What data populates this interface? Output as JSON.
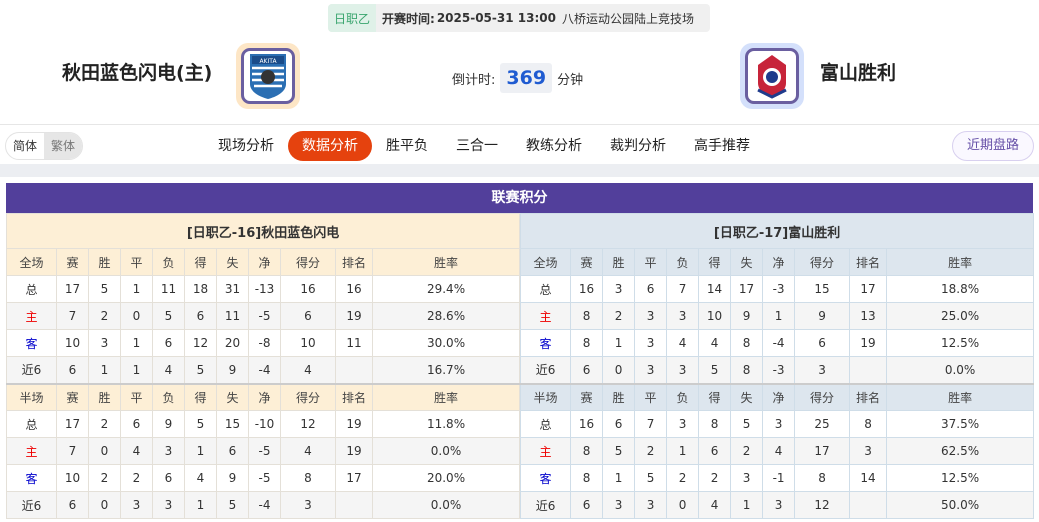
{
  "match": {
    "league": "日职乙",
    "time_label": "开赛时间:",
    "time": "2025-05-31 13:00",
    "venue": "八桥运动公园陆上竞技场",
    "home": "秋田蓝色闪电(主)",
    "away": "富山胜利",
    "countdown_label": "倒计时:",
    "countdown": "369",
    "countdown_unit": "分钟",
    "home_logo_text": "AKITA"
  },
  "nav": {
    "lang": [
      "简体",
      "繁体"
    ],
    "tabs": [
      "现场分析",
      "数据分析",
      "胜平负",
      "三合一",
      "教练分析",
      "裁判分析",
      "高手推荐"
    ],
    "active": "数据分析",
    "recent": "近期盘路"
  },
  "colors": {
    "accent": "#e5420e",
    "section": "#523f9b",
    "home_row_label": "#e00000",
    "away_row_label": "#0000cc"
  },
  "standings": {
    "title": "联赛积分",
    "headers": [
      "赛",
      "胜",
      "平",
      "负",
      "得",
      "失",
      "净",
      "得分",
      "排名",
      "胜率"
    ],
    "tables": [
      {
        "team": "[日职乙-16]秋田蓝色闪电",
        "sections": [
          {
            "label": "全场",
            "rows": [
              [
                "总",
                "17",
                "5",
                "1",
                "11",
                "18",
                "31",
                "-13",
                "16",
                "16",
                "29.4%"
              ],
              [
                "主",
                "7",
                "2",
                "0",
                "5",
                "6",
                "11",
                "-5",
                "6",
                "19",
                "28.6%"
              ],
              [
                "客",
                "10",
                "3",
                "1",
                "6",
                "12",
                "20",
                "-8",
                "10",
                "11",
                "30.0%"
              ],
              [
                "近6",
                "6",
                "1",
                "1",
                "4",
                "5",
                "9",
                "-4",
                "4",
                "",
                "16.7%"
              ]
            ]
          },
          {
            "label": "半场",
            "rows": [
              [
                "总",
                "17",
                "2",
                "6",
                "9",
                "5",
                "15",
                "-10",
                "12",
                "19",
                "11.8%"
              ],
              [
                "主",
                "7",
                "0",
                "4",
                "3",
                "1",
                "6",
                "-5",
                "4",
                "19",
                "0.0%"
              ],
              [
                "客",
                "10",
                "2",
                "2",
                "6",
                "4",
                "9",
                "-5",
                "8",
                "17",
                "20.0%"
              ],
              [
                "近6",
                "6",
                "0",
                "3",
                "3",
                "1",
                "5",
                "-4",
                "3",
                "",
                "0.0%"
              ]
            ]
          }
        ]
      },
      {
        "team": "[日职乙-17]富山胜利",
        "sections": [
          {
            "label": "全场",
            "rows": [
              [
                "总",
                "16",
                "3",
                "6",
                "7",
                "14",
                "17",
                "-3",
                "15",
                "17",
                "18.8%"
              ],
              [
                "主",
                "8",
                "2",
                "3",
                "3",
                "10",
                "9",
                "1",
                "9",
                "13",
                "25.0%"
              ],
              [
                "客",
                "8",
                "1",
                "3",
                "4",
                "4",
                "8",
                "-4",
                "6",
                "19",
                "12.5%"
              ],
              [
                "近6",
                "6",
                "0",
                "3",
                "3",
                "5",
                "8",
                "-3",
                "3",
                "",
                "0.0%"
              ]
            ]
          },
          {
            "label": "半场",
            "rows": [
              [
                "总",
                "16",
                "6",
                "7",
                "3",
                "8",
                "5",
                "3",
                "25",
                "8",
                "37.5%"
              ],
              [
                "主",
                "8",
                "5",
                "2",
                "1",
                "6",
                "2",
                "4",
                "17",
                "3",
                "62.5%"
              ],
              [
                "客",
                "8",
                "1",
                "5",
                "2",
                "2",
                "3",
                "-1",
                "8",
                "14",
                "12.5%"
              ],
              [
                "近6",
                "6",
                "3",
                "3",
                "0",
                "4",
                "1",
                "3",
                "12",
                "",
                "50.0%"
              ]
            ]
          }
        ]
      }
    ]
  }
}
